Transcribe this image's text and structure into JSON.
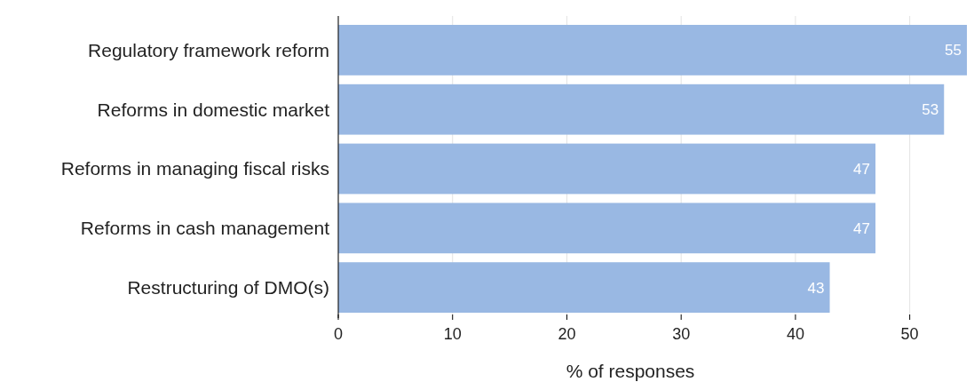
{
  "chart_data": {
    "type": "bar",
    "orientation": "horizontal",
    "categories": [
      "Regulatory framework reform",
      "Reforms in domestic market",
      "Reforms in managing fiscal risks",
      "Reforms in cash management",
      "Restructuring of DMO(s)"
    ],
    "values": [
      55,
      53,
      47,
      47,
      43
    ],
    "color": "#99b8e3",
    "data_labels": true,
    "xlabel": "% of responses",
    "xlim": [
      0,
      55
    ],
    "xticks": [
      0,
      10,
      20,
      30,
      40,
      50
    ],
    "grid": "x"
  }
}
